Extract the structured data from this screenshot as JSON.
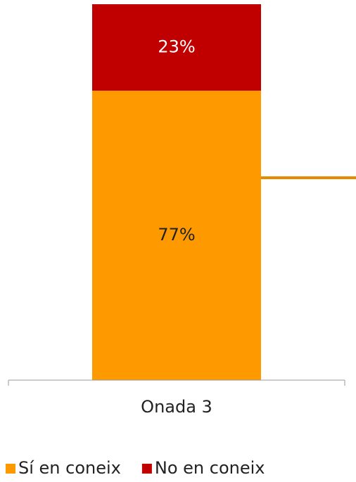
{
  "chart_data": {
    "type": "bar",
    "stacked": true,
    "categories": [
      "Onada 3"
    ],
    "series": [
      {
        "name": "Sí en coneix",
        "color": "#ff9900",
        "values": [
          77
        ],
        "value_labels": [
          "77%"
        ]
      },
      {
        "name": "No en coneix",
        "color": "#c00000",
        "values": [
          23
        ],
        "value_labels": [
          "23%"
        ]
      }
    ],
    "ylim": [
      0,
      100
    ],
    "legend": "bottom"
  }
}
